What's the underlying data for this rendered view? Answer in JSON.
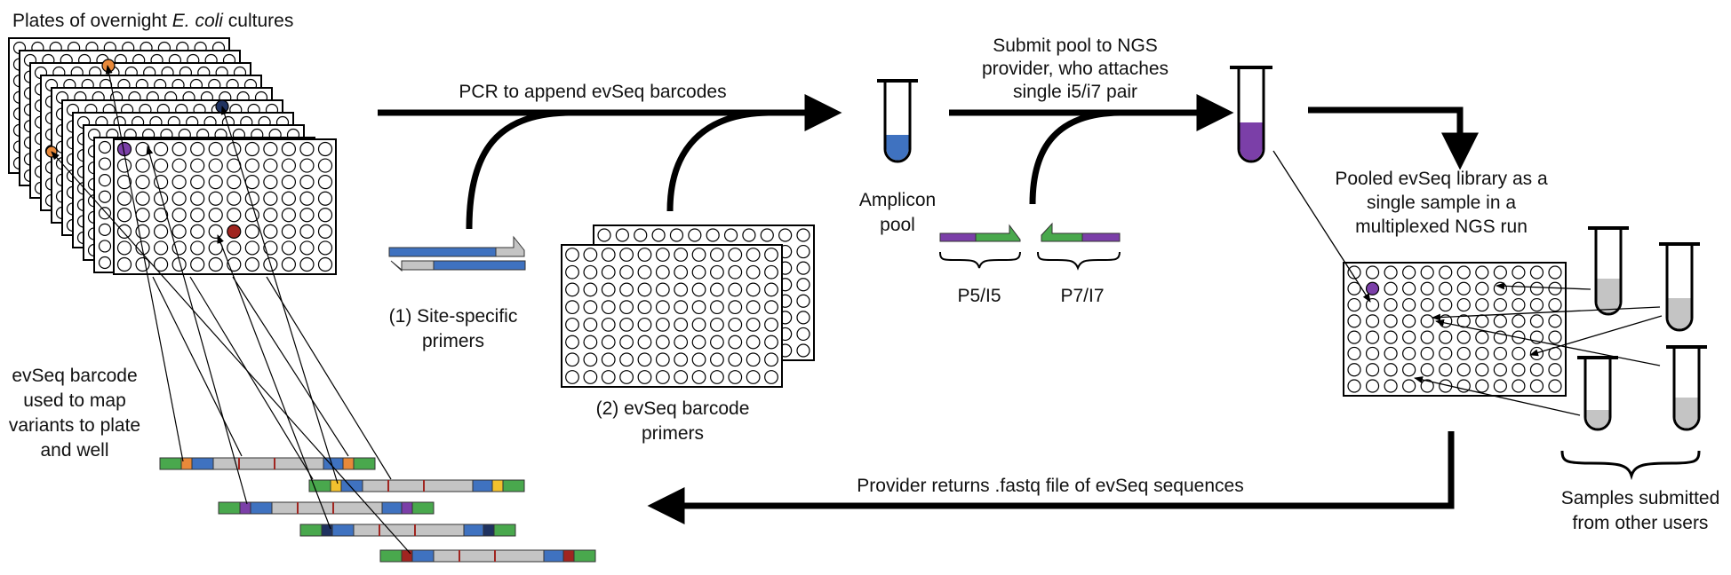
{
  "title": {
    "prefix": "Plates of overnight ",
    "italic": "E. coli",
    "suffix": " cultures"
  },
  "steps": {
    "pcr": "PCR to append evSeq barcodes",
    "submit": [
      "Submit pool to NGS",
      "provider, who attaches",
      "single i5/i7 pair"
    ],
    "returns": "Provider returns .fastq file of evSeq sequences"
  },
  "labels": {
    "site_specific": [
      "(1) Site-specific",
      "primers"
    ],
    "evseq_primers": [
      "(2) evSeq barcode",
      "primers"
    ],
    "amplicon_pool": [
      "Amplicon",
      "pool"
    ],
    "p5": "P5/I5",
    "p7": "P7/I7",
    "pooled_library": [
      "Pooled evSeq library as a",
      "single sample in a",
      "multiplexed NGS run"
    ],
    "barcode_use": [
      "evSeq barcode",
      "used to map",
      "variants to plate",
      "and well"
    ],
    "other_samples": [
      "Samples submitted",
      "from other users"
    ]
  },
  "colors": {
    "blue": "#3f72c0",
    "purple": "#7b3fa8",
    "green": "#49a84d",
    "orange": "#e8893a",
    "red": "#a02520",
    "gray": "#c4c4c4",
    "navy": "#1f3260",
    "yellow": "#f2c12e"
  }
}
